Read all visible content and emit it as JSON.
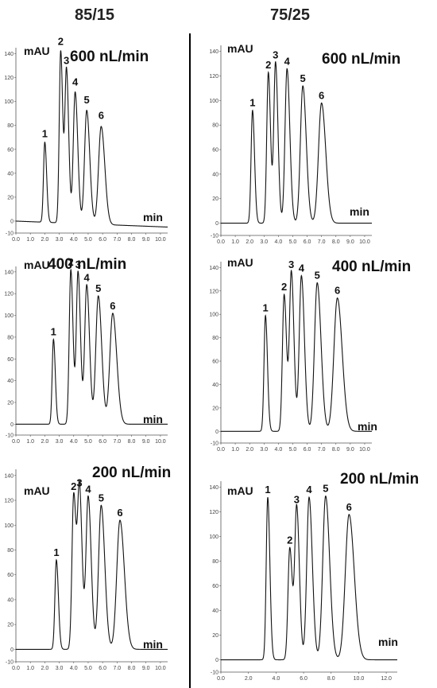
{
  "columns": [
    {
      "title": "85/15"
    },
    {
      "title": "75/25"
    }
  ],
  "chart_data": [
    {
      "type": "line",
      "composition": "85/15",
      "flow_label": "600 nL/min",
      "ylabel": "mAU",
      "xlabel": "min",
      "xlim": [
        0,
        10.5
      ],
      "ylim": [
        -10,
        145
      ],
      "xticks": [
        "0.0",
        "1.0",
        "2.0",
        "3.0",
        "4.0",
        "5.0",
        "6.0",
        "7.0",
        "8.0",
        "9.0",
        "10.0"
      ],
      "yticks": [
        "-10",
        "0",
        "20",
        "40",
        "60",
        "80",
        "100",
        "120",
        "140"
      ],
      "peaks": [
        {
          "label": "1",
          "time": 2.0,
          "height": 67,
          "width": 0.09
        },
        {
          "label": "2",
          "time": 3.1,
          "height": 144,
          "width": 0.1
        },
        {
          "label": "3",
          "time": 3.5,
          "height": 128,
          "width": 0.11
        },
        {
          "label": "4",
          "time": 4.1,
          "height": 110,
          "width": 0.13
        },
        {
          "label": "5",
          "time": 4.9,
          "height": 95,
          "width": 0.15
        },
        {
          "label": "6",
          "time": 5.9,
          "height": 82,
          "width": 0.18
        }
      ],
      "baseline": {
        "start": 0,
        "end": -5
      }
    },
    {
      "type": "line",
      "composition": "75/25",
      "flow_label": "600 nL/min",
      "ylabel": "mAU",
      "xlabel": "min",
      "xlim": [
        0,
        10.5
      ],
      "ylim": [
        -10,
        145
      ],
      "xticks": [
        "0.0",
        "1.0",
        "2.0",
        "3.0",
        "4.0",
        "5.0",
        "6.0",
        "7.0",
        "8.0",
        "9.0",
        "10.0"
      ],
      "yticks": [
        "-10",
        "0",
        "20",
        "40",
        "60",
        "80",
        "100",
        "120",
        "140"
      ],
      "peaks": [
        {
          "label": "1",
          "time": 2.2,
          "height": 92,
          "width": 0.1
        },
        {
          "label": "2",
          "time": 3.3,
          "height": 123,
          "width": 0.11
        },
        {
          "label": "3",
          "time": 3.8,
          "height": 131,
          "width": 0.12
        },
        {
          "label": "4",
          "time": 4.6,
          "height": 126,
          "width": 0.14
        },
        {
          "label": "5",
          "time": 5.7,
          "height": 112,
          "width": 0.17
        },
        {
          "label": "6",
          "time": 7.0,
          "height": 98,
          "width": 0.21
        }
      ],
      "baseline": {
        "start": 0,
        "end": 0
      }
    },
    {
      "type": "line",
      "composition": "85/15",
      "flow_label": "400 nL/min",
      "ylabel": "mAU",
      "xlabel": "min",
      "xlim": [
        0,
        10.5
      ],
      "ylim": [
        -10,
        145
      ],
      "xticks": [
        "0.0",
        "1.0",
        "2.0",
        "3.0",
        "4.0",
        "5.0",
        "6.0",
        "7.0",
        "8.0",
        "9.0",
        "10.0"
      ],
      "yticks": [
        "-10",
        "0",
        "20",
        "40",
        "60",
        "80",
        "100",
        "120",
        "140"
      ],
      "peaks": [
        {
          "label": "1",
          "time": 2.6,
          "height": 78,
          "width": 0.09
        },
        {
          "label": "2",
          "time": 3.8,
          "height": 142,
          "width": 0.11
        },
        {
          "label": "3",
          "time": 4.3,
          "height": 140,
          "width": 0.12
        },
        {
          "label": "4",
          "time": 4.9,
          "height": 128,
          "width": 0.14
        },
        {
          "label": "5",
          "time": 5.7,
          "height": 118,
          "width": 0.17
        },
        {
          "label": "6",
          "time": 6.7,
          "height": 102,
          "width": 0.2
        }
      ],
      "baseline": {
        "start": 0,
        "end": 0
      }
    },
    {
      "type": "line",
      "composition": "75/25",
      "flow_label": "400 nL/min",
      "ylabel": "mAU",
      "xlabel": "min",
      "xlim": [
        0,
        10.5
      ],
      "ylim": [
        -10,
        145
      ],
      "xticks": [
        "0.0",
        "1.0",
        "2.0",
        "3.0",
        "4.0",
        "5.0",
        "6.0",
        "7.0",
        "8.0",
        "9.0",
        "10.0"
      ],
      "yticks": [
        "-10",
        "0",
        "20",
        "40",
        "60",
        "80",
        "100",
        "120",
        "140"
      ],
      "peaks": [
        {
          "label": "1",
          "time": 3.1,
          "height": 99,
          "width": 0.1
        },
        {
          "label": "2",
          "time": 4.4,
          "height": 117,
          "width": 0.12
        },
        {
          "label": "3",
          "time": 4.9,
          "height": 136,
          "width": 0.13
        },
        {
          "label": "4",
          "time": 5.6,
          "height": 133,
          "width": 0.15
        },
        {
          "label": "5",
          "time": 6.7,
          "height": 127,
          "width": 0.19
        },
        {
          "label": "6",
          "time": 8.1,
          "height": 114,
          "width": 0.24
        }
      ],
      "baseline": {
        "start": 0,
        "end": 0
      }
    },
    {
      "type": "line",
      "composition": "85/15",
      "flow_label": "200 nL/min",
      "ylabel": "mAU",
      "xlabel": "min",
      "xlim": [
        0,
        10.5
      ],
      "ylim": [
        -10,
        145
      ],
      "xticks": [
        "0.0",
        "1.0",
        "2.0",
        "3.0",
        "4.0",
        "5.0",
        "6.0",
        "7.0",
        "8.0",
        "9.0",
        "10.0"
      ],
      "yticks": [
        "-10",
        "0",
        "20",
        "40",
        "60",
        "80",
        "100",
        "120",
        "140"
      ],
      "peaks": [
        {
          "label": "1",
          "time": 2.8,
          "height": 72,
          "width": 0.1
        },
        {
          "label": "2",
          "time": 4.0,
          "height": 125,
          "width": 0.12
        },
        {
          "label": "3",
          "time": 4.4,
          "height": 128,
          "width": 0.13
        },
        {
          "label": "4",
          "time": 5.0,
          "height": 123,
          "width": 0.15
        },
        {
          "label": "5",
          "time": 5.9,
          "height": 116,
          "width": 0.18
        },
        {
          "label": "6",
          "time": 7.2,
          "height": 104,
          "width": 0.22
        }
      ],
      "baseline": {
        "start": 0,
        "end": 0
      }
    },
    {
      "type": "line",
      "composition": "75/25",
      "flow_label": "200 nL/min",
      "ylabel": "mAU",
      "xlabel": "min",
      "xlim": [
        0,
        12.8
      ],
      "ylim": [
        -10,
        145
      ],
      "xticks": [
        "0.0",
        "2.0",
        "4.0",
        "6.0",
        "8.0",
        "10.0",
        "12.0"
      ],
      "yticks": [
        "-10",
        "0",
        "20",
        "40",
        "60",
        "80",
        "100",
        "120",
        "140"
      ],
      "peaks": [
        {
          "label": "1",
          "time": 3.4,
          "height": 132,
          "width": 0.11
        },
        {
          "label": "2",
          "time": 5.0,
          "height": 91,
          "width": 0.13
        },
        {
          "label": "3",
          "time": 5.5,
          "height": 124,
          "width": 0.14
        },
        {
          "label": "4",
          "time": 6.4,
          "height": 132,
          "width": 0.17
        },
        {
          "label": "5",
          "time": 7.6,
          "height": 133,
          "width": 0.21
        },
        {
          "label": "6",
          "time": 9.3,
          "height": 118,
          "width": 0.27
        }
      ],
      "baseline": {
        "start": 0,
        "end": 0
      }
    }
  ]
}
